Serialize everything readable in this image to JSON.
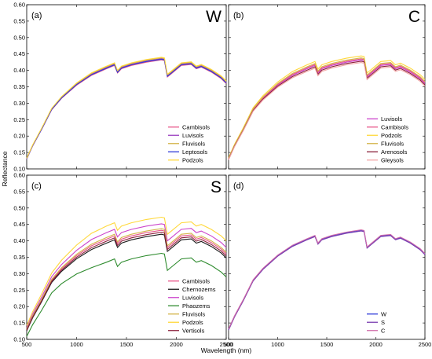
{
  "figure": {
    "ylabel": "Reflectance",
    "xlabel": "Wavelength (nm)"
  },
  "chart_data": [
    {
      "type": "line",
      "panel_label": "(a)",
      "panel_letter": "W",
      "xlim": [
        500,
        2500
      ],
      "ylim": [
        0.1,
        0.6
      ],
      "xticks": [
        "500",
        "1000",
        "1500",
        "2000",
        "2500"
      ],
      "yticks": [
        "0.10",
        "0.15",
        "0.20",
        "0.25",
        "0.30",
        "0.35",
        "0.40",
        "0.45",
        "0.50",
        "0.55",
        "0.60"
      ],
      "legend_position": "bottom-right",
      "series": [
        {
          "name": "Cambisols",
          "color": "#e8578a",
          "offset": 0.0
        },
        {
          "name": "Luvisols",
          "color": "#9b3fc0",
          "offset": 0.004
        },
        {
          "name": "Fluvisols",
          "color": "#d4b44a",
          "offset": 0.006
        },
        {
          "name": "Leptosols",
          "color": "#2f3bd8",
          "offset": 0.002
        },
        {
          "name": "Podzols",
          "color": "#ffd83a",
          "offset": 0.008
        }
      ]
    },
    {
      "type": "line",
      "panel_label": "(b)",
      "panel_letter": "C",
      "xlim": [
        500,
        2500
      ],
      "ylim": [
        0.1,
        0.6
      ],
      "xticks": [
        "500",
        "1000",
        "1500",
        "2000",
        "2500"
      ],
      "yticks": [
        "0.10",
        "0.15",
        "0.20",
        "0.25",
        "0.30",
        "0.35",
        "0.40",
        "0.45",
        "0.50",
        "0.55",
        "0.60"
      ],
      "legend_position": "bottom-right",
      "series": [
        {
          "name": "Luvisols",
          "color": "#cc44cc",
          "offset": 0.0
        },
        {
          "name": "Cambisols",
          "color": "#e8578a",
          "offset": 0.003
        },
        {
          "name": "Podzols",
          "color": "#ffd83a",
          "offset": 0.012
        },
        {
          "name": "Fluvisols",
          "color": "#d4b44a",
          "offset": 0.006
        },
        {
          "name": "Arenosols",
          "color": "#8b1f3a",
          "offset": -0.004
        },
        {
          "name": "Gleysols",
          "color": "#f2a6a6",
          "offset": -0.008
        }
      ]
    },
    {
      "type": "line",
      "panel_label": "(c)",
      "panel_letter": "S",
      "xlim": [
        500,
        2500
      ],
      "ylim": [
        0.1,
        0.6
      ],
      "xticks": [
        "500",
        "1000",
        "1500",
        "2000",
        "2500"
      ],
      "yticks": [
        "0.10",
        "0.15",
        "0.20",
        "0.25",
        "0.30",
        "0.35",
        "0.40",
        "0.45",
        "0.50",
        "0.55",
        "0.60"
      ],
      "legend_position": "bottom-right",
      "series": [
        {
          "name": "Cambisols",
          "color": "#e8578a",
          "offset": 0.0
        },
        {
          "name": "Chernozems",
          "color": "#1a1a1a",
          "offset": -0.012
        },
        {
          "name": "Luvisols",
          "color": "#cc44cc",
          "offset": 0.02
        },
        {
          "name": "Phaozems",
          "color": "#2e8b2e",
          "offset": -0.07
        },
        {
          "name": "Fluvisols",
          "color": "#d4b44a",
          "offset": 0.005
        },
        {
          "name": "Podzols",
          "color": "#ffd83a",
          "offset": 0.04
        },
        {
          "name": "Vertisols",
          "color": "#8b1f3a",
          "offset": -0.006
        }
      ]
    },
    {
      "type": "line",
      "panel_label": "(d)",
      "panel_letter": "",
      "xlim": [
        500,
        2500
      ],
      "ylim": [
        0.1,
        0.6
      ],
      "xticks": [
        "500",
        "1000",
        "1500",
        "2000",
        "2500"
      ],
      "yticks": [
        "0.10",
        "0.15",
        "0.20",
        "0.25",
        "0.30",
        "0.35",
        "0.40",
        "0.45",
        "0.50",
        "0.55",
        "0.60"
      ],
      "legend_position": "bottom-right",
      "series": [
        {
          "name": "W",
          "color": "#2f3bd8",
          "offset": 0.0
        },
        {
          "name": "S",
          "color": "#7a3fb0",
          "offset": -0.004
        },
        {
          "name": "C",
          "color": "#d06aa8",
          "offset": 0.003
        }
      ]
    }
  ]
}
